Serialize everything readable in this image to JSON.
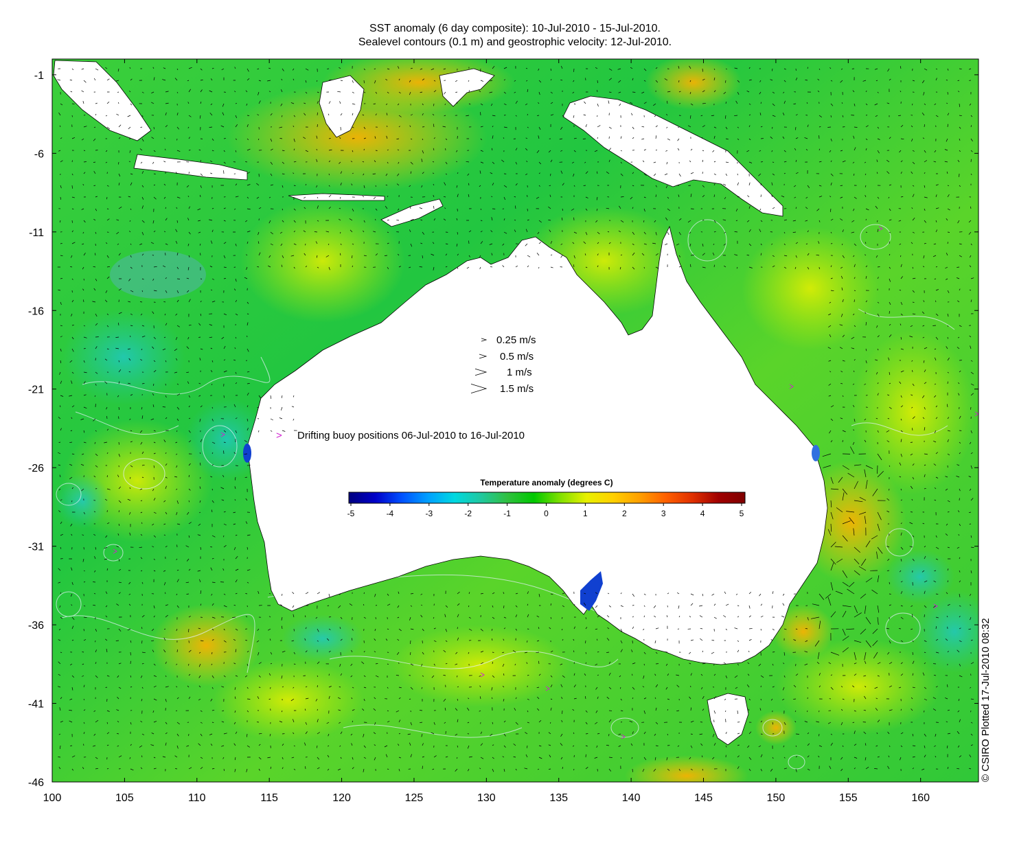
{
  "title_line1": "SST anomaly (6 day composite): 10-Jul-2010 - 15-Jul-2010.",
  "title_line2": "Sealevel contours (0.1 m) and geostrophic velocity: 12-Jul-2010.",
  "axes": {
    "x_ticks": [
      "100",
      "105",
      "110",
      "115",
      "120",
      "125",
      "130",
      "135",
      "140",
      "145",
      "150",
      "155",
      "160"
    ],
    "y_ticks": [
      "-1",
      "-6",
      "-11",
      "-16",
      "-21",
      "-26",
      "-31",
      "-36",
      "-41",
      "-46"
    ],
    "x_range": [
      100,
      164
    ],
    "y_range": [
      -46,
      0
    ]
  },
  "velocity_legend": [
    {
      "label": "0.25 m/s",
      "speed": 0.25
    },
    {
      "label": "0.5 m/s",
      "speed": 0.5
    },
    {
      "label": "1 m/s",
      "speed": 1
    },
    {
      "label": "1.5 m/s",
      "speed": 1.5
    }
  ],
  "buoy_legend": {
    "symbol": ">",
    "label": "Drifting buoy positions 06-Jul-2010 to 16-Jul-2010",
    "color": "#d020d0"
  },
  "colorbar": {
    "title": "Temperature anomaly (degrees C)",
    "ticks": [
      "-5",
      "-4",
      "-3",
      "-2",
      "-1",
      "0",
      "1",
      "2",
      "3",
      "4",
      "5"
    ],
    "range": [
      -5,
      5
    ],
    "colors": [
      "#00007f",
      "#0000c8",
      "#0050ff",
      "#00a0ff",
      "#00d8e0",
      "#20c8a0",
      "#30c040",
      "#00c800",
      "#80e000",
      "#e8f000",
      "#ffd000",
      "#ffa000",
      "#ff6000",
      "#e03000",
      "#a00000",
      "#7f0000"
    ]
  },
  "credit": "© CSIRO Plotted 17-Jul-2010 08:32",
  "colors": {
    "ocean_base": "#2ecc30",
    "land": "#ffffff",
    "contour": "#e8f0ff",
    "arrow": "#000000"
  }
}
